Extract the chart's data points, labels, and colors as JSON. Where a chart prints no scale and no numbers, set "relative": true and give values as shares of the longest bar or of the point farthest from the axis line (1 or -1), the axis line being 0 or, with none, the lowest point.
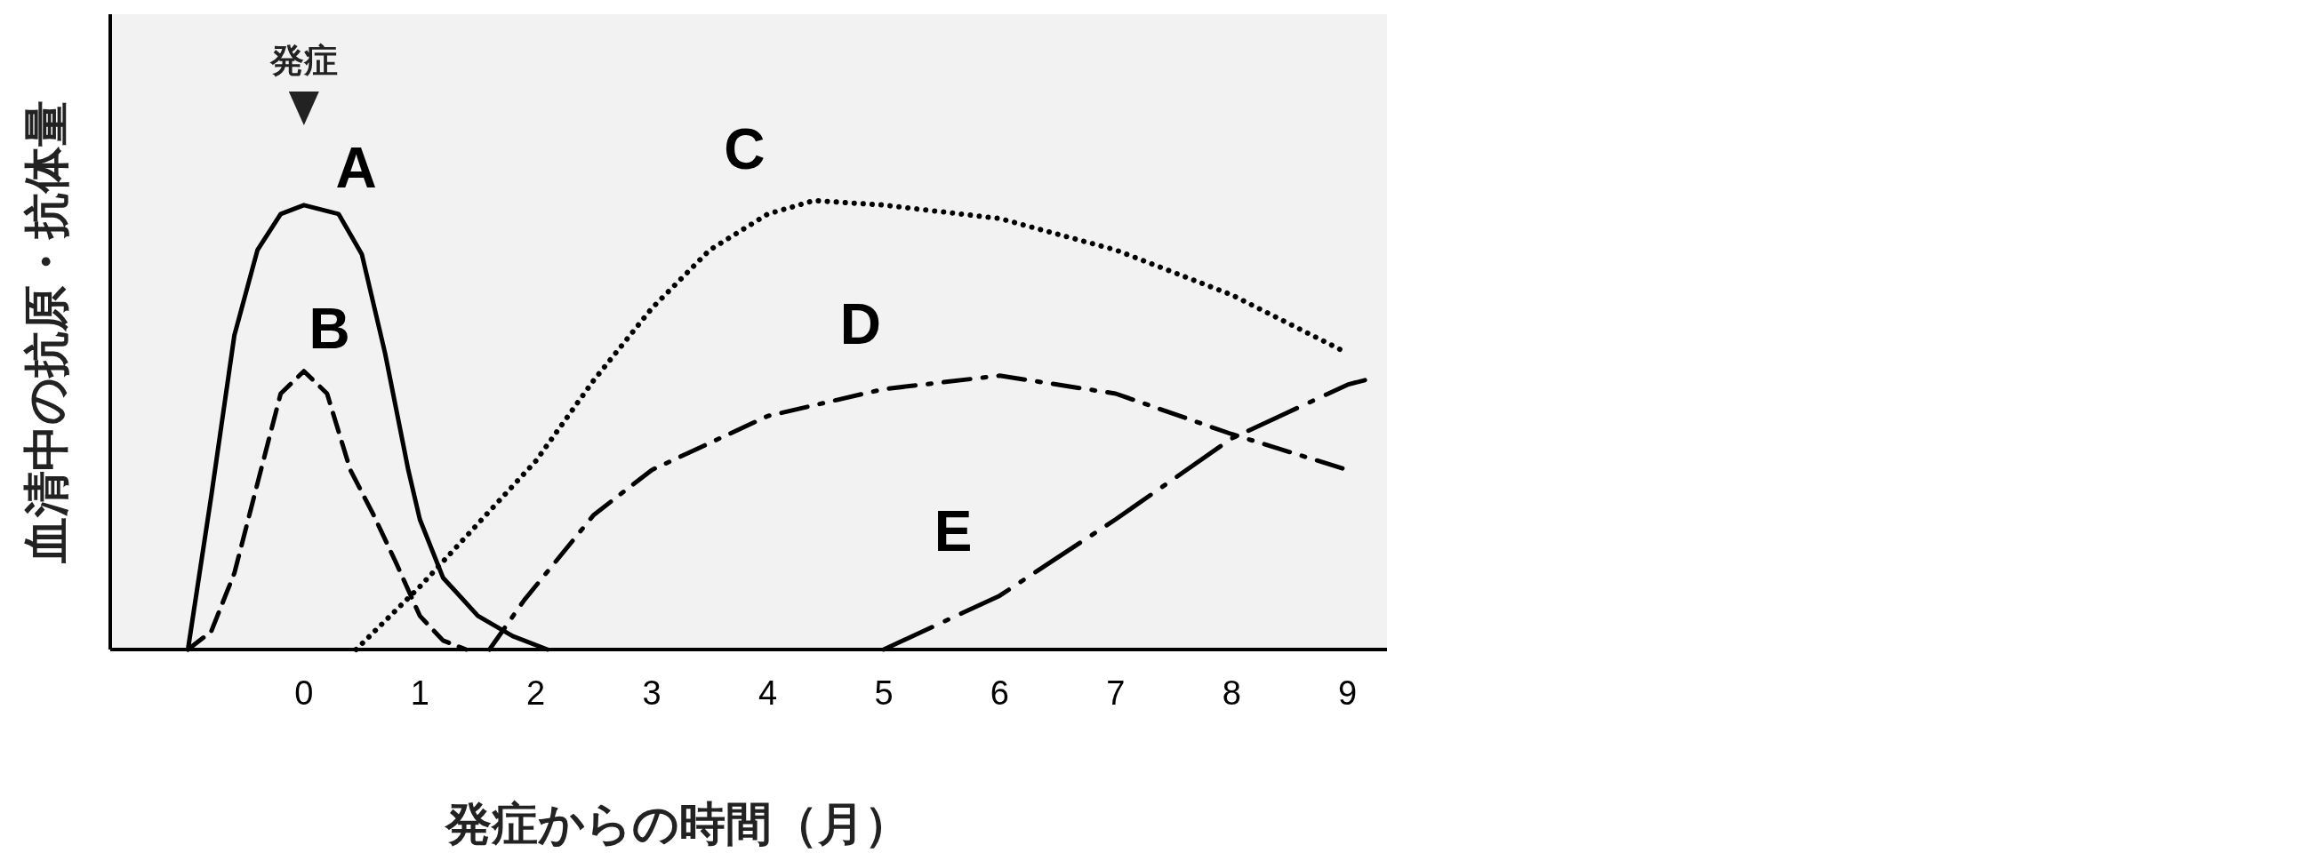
{
  "chart_data": {
    "type": "line",
    "relative": true,
    "xlabel": "発症からの時間（月）",
    "ylabel": "血清中の抗原・抗体量",
    "xlim": [
      -1.67,
      9.34
    ],
    "xticks": [
      0,
      1,
      2,
      3,
      4,
      5,
      6,
      7,
      8,
      9
    ],
    "grid": false,
    "legend": false,
    "marker": "none",
    "series": [
      {
        "name": "A",
        "color": "#000000",
        "line_style": "solid",
        "x": [
          -1.0,
          -0.8,
          -0.6,
          -0.4,
          -0.2,
          0,
          0.3,
          0.5,
          0.7,
          0.9,
          1.0,
          1.2,
          1.5,
          1.8,
          2.1
        ],
        "values": [
          0,
          0.34,
          0.7,
          0.89,
          0.97,
          0.99,
          0.97,
          0.88,
          0.66,
          0.4,
          0.29,
          0.16,
          0.075,
          0.03,
          0
        ]
      },
      {
        "name": "B",
        "color": "#000000",
        "line_style": "dashed",
        "x": [
          -1.0,
          -0.8,
          -0.6,
          -0.4,
          -0.2,
          0,
          0.2,
          0.4,
          0.6,
          0.8,
          1.0,
          1.2,
          1.4
        ],
        "values": [
          0,
          0.04,
          0.17,
          0.37,
          0.57,
          0.62,
          0.57,
          0.4,
          0.3,
          0.19,
          0.075,
          0.02,
          0
        ]
      },
      {
        "name": "C",
        "color": "#000000",
        "line_style": "dotted",
        "x": [
          0.45,
          1.0,
          1.5,
          2.0,
          2.5,
          3.0,
          3.5,
          4.0,
          4.4,
          5.0,
          6.0,
          7.0,
          8.0,
          9.0
        ],
        "values": [
          0,
          0.14,
          0.28,
          0.42,
          0.6,
          0.76,
          0.89,
          0.97,
          1.0,
          0.99,
          0.96,
          0.89,
          0.79,
          0.66
        ]
      },
      {
        "name": "D",
        "color": "#000000",
        "line_style": "dashdot",
        "x": [
          1.6,
          1.9,
          2.5,
          3.0,
          4.0,
          5.0,
          6.0,
          7.0,
          8.0,
          9.0
        ],
        "values": [
          0,
          0.11,
          0.3,
          0.4,
          0.52,
          0.58,
          0.61,
          0.57,
          0.48,
          0.4
        ]
      },
      {
        "name": "E",
        "color": "#000000",
        "line_style": "longdashdot",
        "x": [
          5.0,
          6.0,
          7.0,
          8.0,
          8.5,
          9.0,
          9.15
        ],
        "values": [
          0,
          0.12,
          0.29,
          0.47,
          0.53,
          0.59,
          0.6
        ]
      }
    ],
    "annotations": [
      "発症"
    ]
  }
}
